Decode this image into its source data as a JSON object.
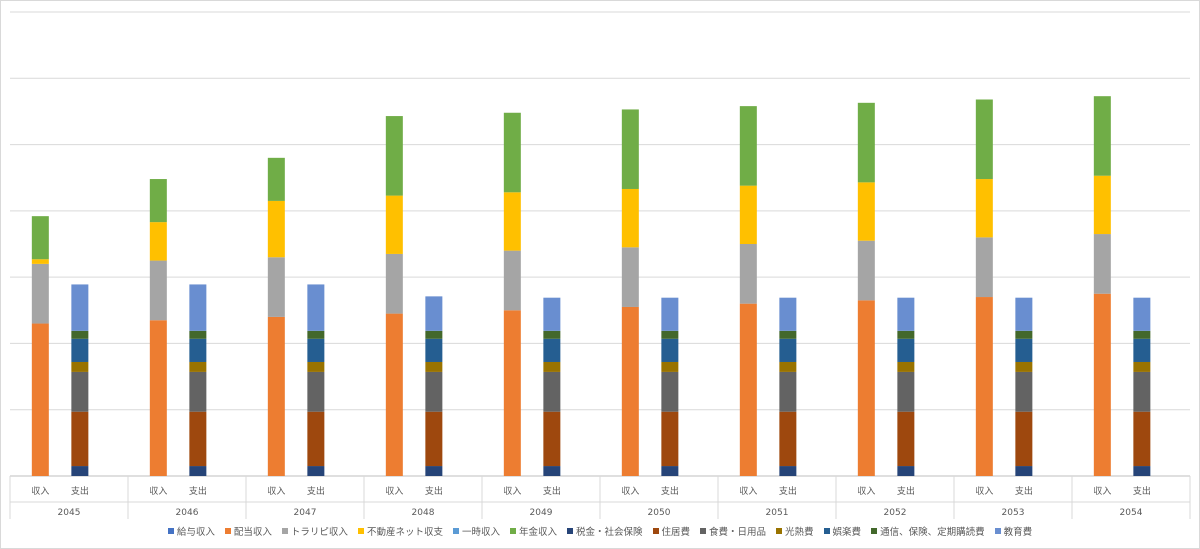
{
  "chart_data": {
    "type": "bar",
    "stacked": true,
    "grouping": "year x [収入, 支出]",
    "years": [
      "2045",
      "2046",
      "2047",
      "2048",
      "2049",
      "2050",
      "2051",
      "2052",
      "2053",
      "2054"
    ],
    "subcategories": [
      "収入",
      "支出"
    ],
    "grid": true,
    "ylim": [
      0,
      7
    ],
    "legend_position": "bottom",
    "income_series": [
      {
        "name": "給与収入",
        "color": "#4472c4",
        "values": [
          0,
          0,
          0,
          0,
          0,
          0,
          0,
          0,
          0,
          0
        ]
      },
      {
        "name": "配当収入",
        "color": "#ed7d31",
        "values": [
          2.3,
          2.35,
          2.4,
          2.45,
          2.5,
          2.55,
          2.6,
          2.65,
          2.7,
          2.75
        ]
      },
      {
        "name": "トラリピ収入",
        "color": "#a5a5a5",
        "values": [
          0.9,
          0.9,
          0.9,
          0.9,
          0.9,
          0.9,
          0.9,
          0.9,
          0.9,
          0.9
        ]
      },
      {
        "name": "不動産ネット収支",
        "color": "#ffc000",
        "values": [
          0.07,
          0.58,
          0.85,
          0.88,
          0.88,
          0.88,
          0.88,
          0.88,
          0.88,
          0.88
        ]
      },
      {
        "name": "一時収入",
        "color": "#5b9bd5",
        "values": [
          0,
          0,
          0,
          0,
          0,
          0,
          0,
          0,
          0,
          0
        ]
      },
      {
        "name": "年金収入",
        "color": "#70ad47",
        "values": [
          0.65,
          0.65,
          0.65,
          1.2,
          1.2,
          1.2,
          1.2,
          1.2,
          1.2,
          1.2
        ]
      }
    ],
    "expense_series": [
      {
        "name": "税金・社会保険",
        "color": "#264478",
        "values": [
          0.15,
          0.15,
          0.15,
          0.15,
          0.15,
          0.15,
          0.15,
          0.15,
          0.15,
          0.15
        ]
      },
      {
        "name": "住居費",
        "color": "#9e480e",
        "values": [
          0.82,
          0.82,
          0.82,
          0.82,
          0.82,
          0.82,
          0.82,
          0.82,
          0.82,
          0.82
        ]
      },
      {
        "name": "食費・日用品",
        "color": "#636363",
        "values": [
          0.6,
          0.6,
          0.6,
          0.6,
          0.6,
          0.6,
          0.6,
          0.6,
          0.6,
          0.6
        ]
      },
      {
        "name": "光熱費",
        "color": "#997300",
        "values": [
          0.15,
          0.15,
          0.15,
          0.15,
          0.15,
          0.15,
          0.15,
          0.15,
          0.15,
          0.15
        ]
      },
      {
        "name": "娯楽費",
        "color": "#255e91",
        "values": [
          0.35,
          0.35,
          0.35,
          0.35,
          0.35,
          0.35,
          0.35,
          0.35,
          0.35,
          0.35
        ]
      },
      {
        "name": "通信、保険、定期購読費",
        "color": "#43682b",
        "values": [
          0.12,
          0.12,
          0.12,
          0.12,
          0.12,
          0.12,
          0.12,
          0.12,
          0.12,
          0.12
        ]
      },
      {
        "name": "教育費",
        "color": "#698ed0",
        "values": [
          0.7,
          0.7,
          0.7,
          0.52,
          0.5,
          0.5,
          0.5,
          0.5,
          0.5,
          0.5
        ]
      }
    ]
  }
}
